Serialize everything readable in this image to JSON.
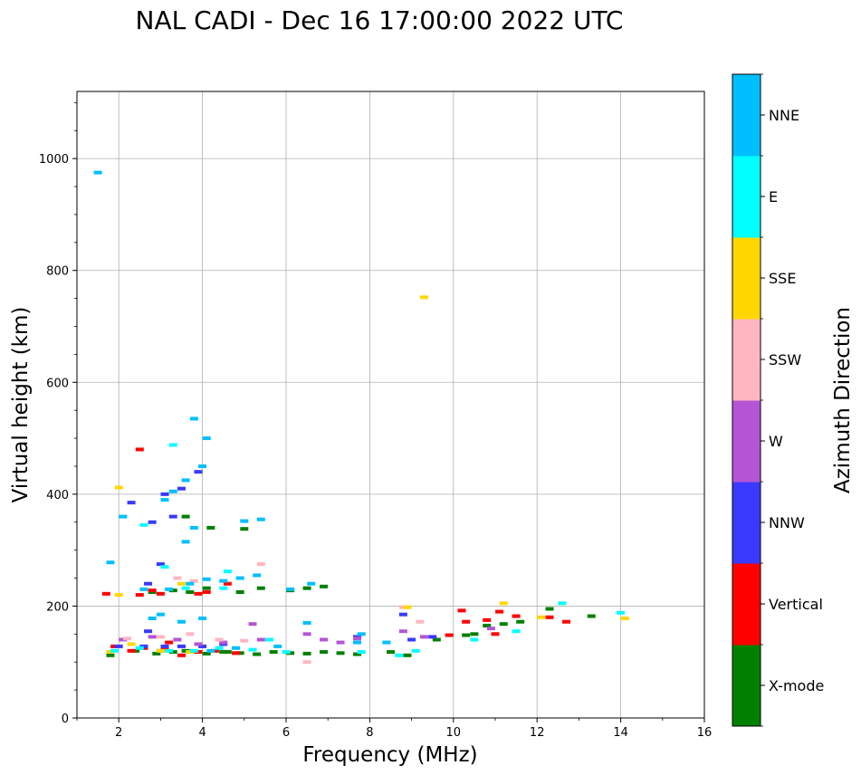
{
  "chart_data": {
    "type": "scatter",
    "title": "NAL CADI - Dec 16 17:00:00 2022 UTC",
    "xlabel": "Frequency (MHz)",
    "ylabel": "Virtual height (km)",
    "xlim": [
      1,
      16
    ],
    "ylim": [
      0,
      1120
    ],
    "xticks": [
      2,
      4,
      6,
      8,
      10,
      12,
      14,
      16
    ],
    "yticks": [
      0,
      200,
      400,
      600,
      800,
      1000
    ],
    "grid": true,
    "colorbar": {
      "label": "Azimuth Direction",
      "categories": [
        {
          "name": "X-mode",
          "color": "#008000"
        },
        {
          "name": "Vertical",
          "color": "#ff0000"
        },
        {
          "name": "NNW",
          "color": "#3a3aff"
        },
        {
          "name": "W",
          "color": "#b455d6"
        },
        {
          "name": "SSW",
          "color": "#ffb6c1"
        },
        {
          "name": "SSE",
          "color": "#ffd700"
        },
        {
          "name": "E",
          "color": "#00ffff"
        },
        {
          "name": "NNE",
          "color": "#00bfff"
        }
      ]
    },
    "series": [
      {
        "name": "X-mode",
        "points": [
          [
            1.8,
            112
          ],
          [
            2.4,
            120
          ],
          [
            2.9,
            115
          ],
          [
            3.3,
            118
          ],
          [
            3.6,
            120
          ],
          [
            4.1,
            115
          ],
          [
            4.5,
            118
          ],
          [
            4.9,
            116
          ],
          [
            5.3,
            114
          ],
          [
            5.7,
            118
          ],
          [
            6.1,
            116
          ],
          [
            6.5,
            115
          ],
          [
            6.9,
            118
          ],
          [
            7.3,
            116
          ],
          [
            7.7,
            114
          ],
          [
            8.5,
            118
          ],
          [
            8.9,
            112
          ],
          [
            9.6,
            140
          ],
          [
            10.3,
            148
          ],
          [
            10.8,
            165
          ],
          [
            11.2,
            168
          ],
          [
            11.6,
            172
          ],
          [
            12.3,
            195
          ],
          [
            13.3,
            182
          ],
          [
            3.3,
            228
          ],
          [
            3.7,
            225
          ],
          [
            4.1,
            232
          ],
          [
            4.9,
            225
          ],
          [
            5.4,
            232
          ],
          [
            6.1,
            228
          ],
          [
            6.5,
            232
          ],
          [
            6.9,
            235
          ],
          [
            5.0,
            338
          ],
          [
            3.6,
            360
          ],
          [
            4.2,
            340
          ],
          [
            2.8,
            225
          ],
          [
            3.0,
            120
          ],
          [
            4.6,
            118
          ],
          [
            10.5,
            150
          ]
        ]
      },
      {
        "name": "Vertical",
        "points": [
          [
            1.9,
            128
          ],
          [
            2.3,
            120
          ],
          [
            2.6,
            125
          ],
          [
            3.1,
            125
          ],
          [
            3.5,
            112
          ],
          [
            3.9,
            118
          ],
          [
            4.3,
            120
          ],
          [
            4.8,
            116
          ],
          [
            2.5,
            220
          ],
          [
            3.0,
            222
          ],
          [
            3.9,
            222
          ],
          [
            4.1,
            225
          ],
          [
            4.6,
            240
          ],
          [
            10.3,
            172
          ],
          [
            10.8,
            175
          ],
          [
            11.1,
            190
          ],
          [
            11.5,
            182
          ],
          [
            12.3,
            180
          ],
          [
            12.7,
            172
          ],
          [
            10.2,
            192
          ],
          [
            11.0,
            150
          ],
          [
            9.9,
            148
          ],
          [
            2.5,
            480
          ],
          [
            2.8,
            228
          ],
          [
            3.2,
            135
          ],
          [
            1.7,
            222
          ]
        ]
      },
      {
        "name": "NNW",
        "points": [
          [
            2.0,
            128
          ],
          [
            2.6,
            128
          ],
          [
            3.1,
            128
          ],
          [
            3.5,
            128
          ],
          [
            4.0,
            128
          ],
          [
            4.5,
            132
          ],
          [
            2.3,
            385
          ],
          [
            2.8,
            350
          ],
          [
            3.1,
            400
          ],
          [
            3.5,
            410
          ],
          [
            3.9,
            440
          ],
          [
            3.0,
            275
          ],
          [
            2.7,
            240
          ],
          [
            7.7,
            145
          ],
          [
            9.0,
            140
          ],
          [
            9.5,
            145
          ],
          [
            3.3,
            360
          ],
          [
            2.7,
            155
          ],
          [
            8.8,
            185
          ]
        ]
      },
      {
        "name": "W",
        "points": [
          [
            2.1,
            140
          ],
          [
            2.8,
            145
          ],
          [
            3.4,
            140
          ],
          [
            3.9,
            132
          ],
          [
            4.5,
            135
          ],
          [
            5.4,
            140
          ],
          [
            6.5,
            150
          ],
          [
            6.9,
            140
          ],
          [
            7.3,
            135
          ],
          [
            7.7,
            142
          ],
          [
            9.3,
            145
          ],
          [
            8.8,
            155
          ],
          [
            10.9,
            160
          ],
          [
            5.2,
            168
          ]
        ]
      },
      {
        "name": "SSW",
        "points": [
          [
            2.2,
            142
          ],
          [
            3.0,
            145
          ],
          [
            3.7,
            150
          ],
          [
            4.4,
            140
          ],
          [
            5.0,
            138
          ],
          [
            5.6,
            140
          ],
          [
            3.4,
            250
          ],
          [
            5.4,
            275
          ],
          [
            8.8,
            198
          ],
          [
            9.2,
            172
          ],
          [
            6.5,
            100
          ],
          [
            3.8,
            245
          ]
        ]
      },
      {
        "name": "SSE",
        "points": [
          [
            1.8,
            118
          ],
          [
            2.3,
            132
          ],
          [
            3.0,
            120
          ],
          [
            3.7,
            118
          ],
          [
            2.0,
            220
          ],
          [
            3.5,
            240
          ],
          [
            8.9,
            198
          ],
          [
            9.3,
            752
          ],
          [
            14.1,
            178
          ],
          [
            11.2,
            205
          ],
          [
            12.1,
            180
          ],
          [
            2.0,
            412
          ]
        ]
      },
      {
        "name": "E",
        "points": [
          [
            1.9,
            120
          ],
          [
            2.5,
            125
          ],
          [
            3.2,
            120
          ],
          [
            3.8,
            120
          ],
          [
            4.4,
            125
          ],
          [
            5.2,
            122
          ],
          [
            6.0,
            118
          ],
          [
            7.8,
            118
          ],
          [
            8.7,
            112
          ],
          [
            9.1,
            120
          ],
          [
            10.5,
            140
          ],
          [
            11.5,
            155
          ],
          [
            12.6,
            205
          ],
          [
            14.0,
            188
          ],
          [
            4.5,
            232
          ],
          [
            3.6,
            232
          ],
          [
            3.1,
            270
          ],
          [
            5.6,
            140
          ],
          [
            2.6,
            345
          ],
          [
            4.6,
            262
          ],
          [
            3.3,
            488
          ]
        ]
      },
      {
        "name": "NNE",
        "points": [
          [
            1.5,
            975
          ],
          [
            3.8,
            535
          ],
          [
            4.1,
            500
          ],
          [
            4.0,
            450
          ],
          [
            3.6,
            425
          ],
          [
            3.3,
            405
          ],
          [
            3.1,
            390
          ],
          [
            2.6,
            230
          ],
          [
            3.2,
            230
          ],
          [
            3.7,
            240
          ],
          [
            4.1,
            248
          ],
          [
            4.5,
            245
          ],
          [
            4.9,
            250
          ],
          [
            5.3,
            255
          ],
          [
            6.1,
            230
          ],
          [
            6.6,
            240
          ],
          [
            7.7,
            135
          ],
          [
            3.0,
            185
          ],
          [
            3.6,
            315
          ],
          [
            5.4,
            355
          ],
          [
            5.0,
            352
          ],
          [
            3.8,
            340
          ],
          [
            2.1,
            360
          ],
          [
            1.8,
            278
          ],
          [
            4.0,
            178
          ],
          [
            3.5,
            172
          ],
          [
            2.8,
            178
          ],
          [
            7.8,
            150
          ],
          [
            6.5,
            170
          ],
          [
            8.4,
            135
          ],
          [
            4.2,
            120
          ],
          [
            4.8,
            125
          ],
          [
            5.8,
            128
          ]
        ]
      }
    ]
  }
}
